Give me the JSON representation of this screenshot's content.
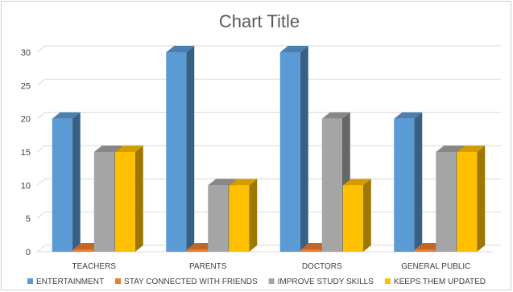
{
  "chart_data": {
    "type": "bar",
    "title": "Chart Title",
    "xlabel": "",
    "ylabel": "",
    "ylim": [
      0,
      30
    ],
    "yticks": [
      0,
      5,
      10,
      15,
      20,
      25,
      30
    ],
    "grid": true,
    "legend": "bottom",
    "categories": [
      "TEACHERS",
      "PARENTS",
      "DOCTORS",
      "GENERAL PUBLIC"
    ],
    "series": [
      {
        "name": "ENTERTAINMENT",
        "color": "#5b9bd5",
        "values": [
          20,
          30,
          30,
          20
        ]
      },
      {
        "name": "STAY CONNECTED WITH FRIENDS",
        "color": "#ed7d31",
        "values": [
          0,
          0,
          0,
          0
        ]
      },
      {
        "name": "IMPROVE STUDY SKILLS",
        "color": "#a5a5a5",
        "values": [
          15,
          10,
          20,
          15
        ]
      },
      {
        "name": "KEEPS THEM UPDATED",
        "color": "#ffc000",
        "values": [
          15,
          10,
          10,
          15
        ]
      }
    ]
  }
}
